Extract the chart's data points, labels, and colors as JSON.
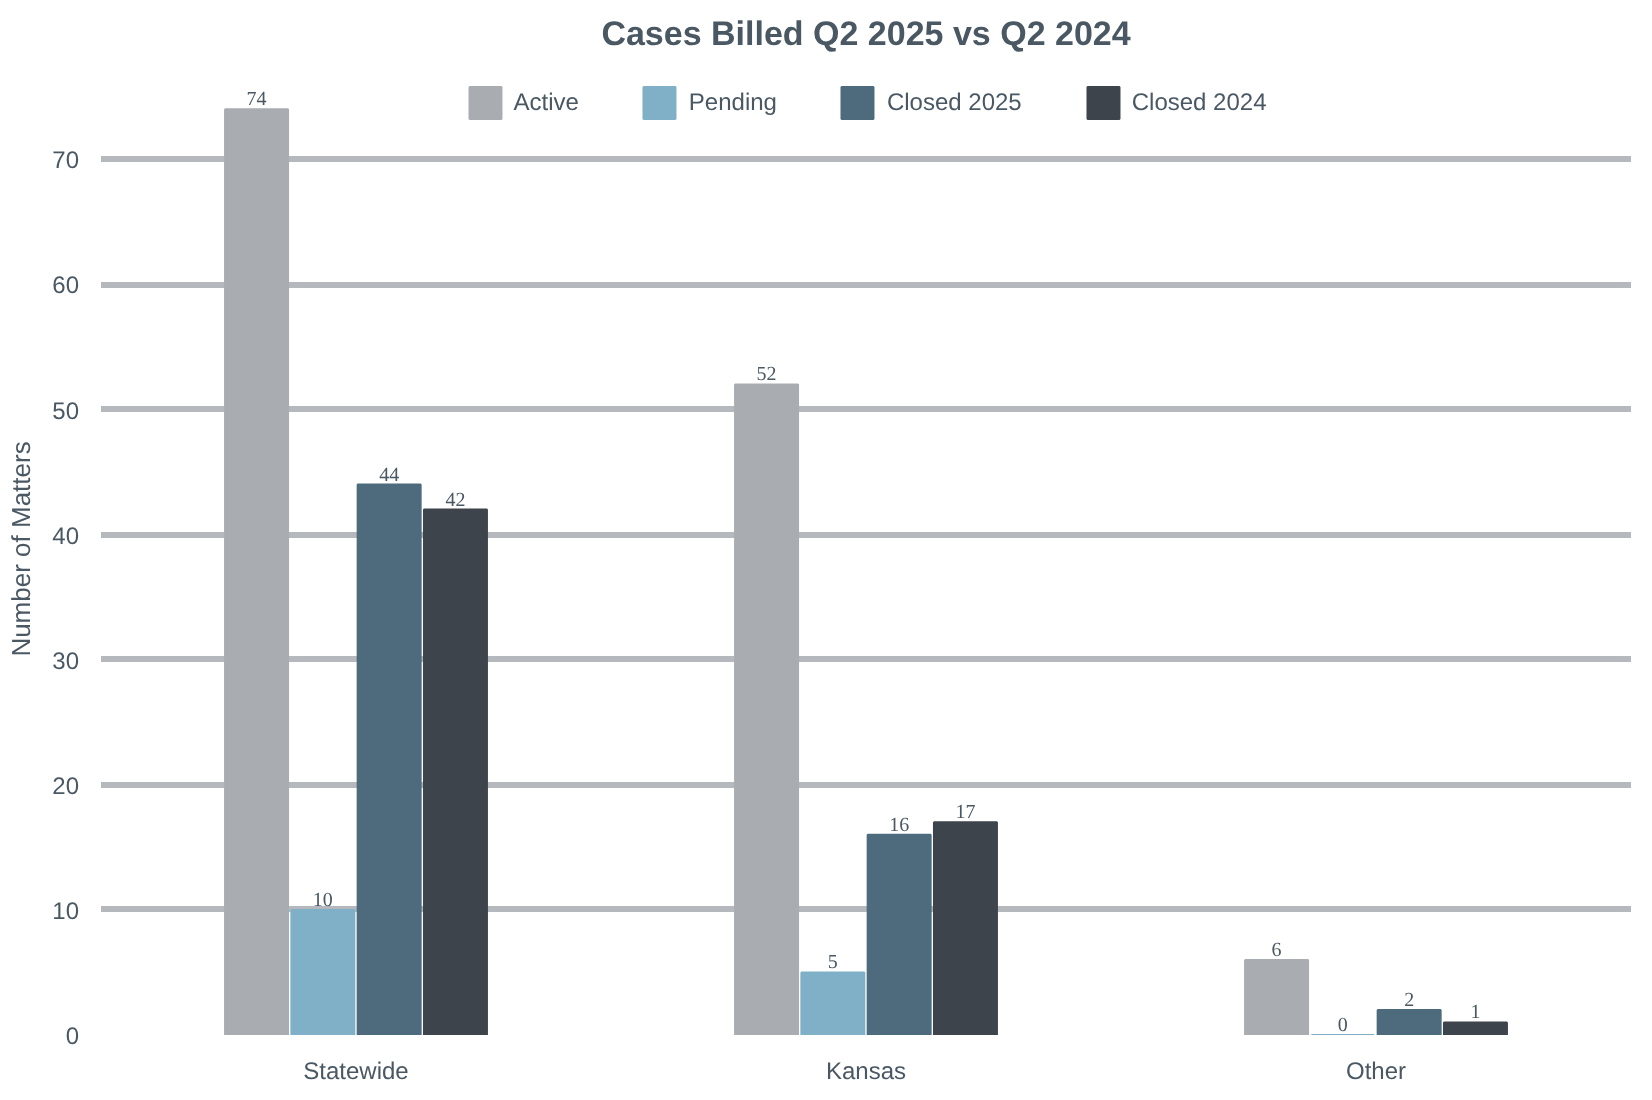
{
  "chart_data": {
    "type": "bar",
    "title": "Cases Billed Q2 2025 vs Q2 2024",
    "ylabel": "Number of Matters",
    "categories": [
      "Statewide",
      "Kansas",
      "Other"
    ],
    "series": [
      {
        "name": "Active",
        "color": "#a9adb1",
        "values": [
          74,
          52,
          6
        ]
      },
      {
        "name": "Pending",
        "color": "#7fb0c7",
        "values": [
          10,
          5,
          0
        ]
      },
      {
        "name": "Closed 2025",
        "color": "#4d6b7d",
        "values": [
          44,
          16,
          2
        ]
      },
      {
        "name": "Closed 2024",
        "color": "#3e444b",
        "values": [
          42,
          17,
          1
        ]
      }
    ],
    "ylim": [
      0,
      74
    ],
    "yticks": [
      0,
      10,
      20,
      30,
      40,
      50,
      60,
      70
    ],
    "grid": "y",
    "legend": "top",
    "data_labels": true
  }
}
